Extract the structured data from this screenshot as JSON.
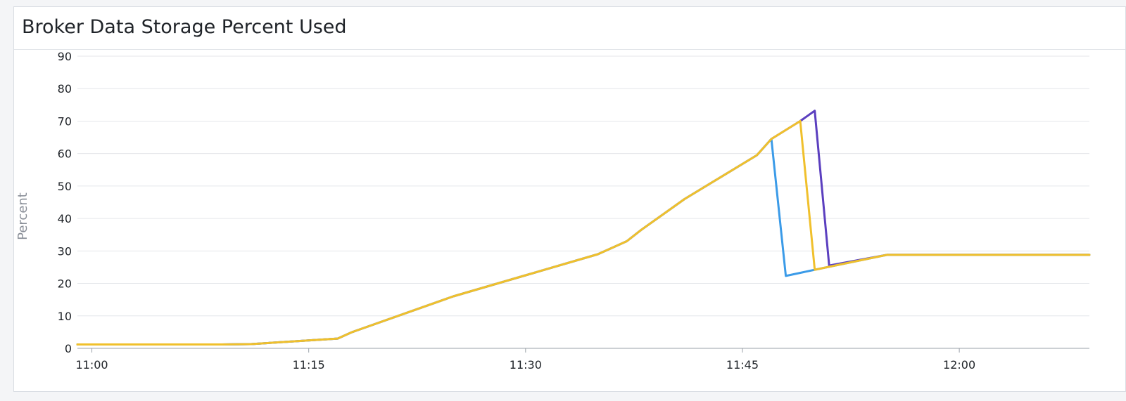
{
  "panel": {
    "title": "Broker Data Storage Percent Used"
  },
  "chart_data": {
    "type": "line",
    "title": "Broker Data Storage Percent Used",
    "xlabel": "",
    "ylabel": "Percent",
    "ylim": [
      0,
      90
    ],
    "yticks": [
      0,
      10,
      20,
      30,
      40,
      50,
      60,
      70,
      80,
      90
    ],
    "xlim": [
      "10:59",
      "12:09"
    ],
    "xticks": [
      "11:00",
      "11:15",
      "11:30",
      "11:45",
      "12:00"
    ],
    "grid": "horizontal",
    "legend": "none",
    "series": [
      {
        "color": "#5b3fbf",
        "x": [
          "10:59",
          "11:04",
          "11:09",
          "11:11",
          "11:17",
          "11:18",
          "11:25",
          "11:30",
          "11:35",
          "11:36",
          "11:37",
          "11:38",
          "11:41",
          "11:46",
          "11:47",
          "11:49",
          "11:50",
          "11:51",
          "11:55",
          "12:00",
          "12:09"
        ],
        "values": [
          1.2,
          1.2,
          1.2,
          1.3,
          3.0,
          5.0,
          16,
          22.5,
          29,
          31,
          33,
          36.5,
          46,
          59.5,
          64.5,
          70,
          73.2,
          25.5,
          28.8,
          28.8,
          28.8
        ]
      },
      {
        "color": "#3b9be8",
        "x": [
          "10:59",
          "11:04",
          "11:09",
          "11:11",
          "11:17",
          "11:18",
          "11:25",
          "11:30",
          "11:35",
          "11:36",
          "11:37",
          "11:38",
          "11:41",
          "11:46",
          "11:47",
          "11:48",
          "11:50",
          "11:55",
          "12:00",
          "12:09"
        ],
        "values": [
          1.2,
          1.2,
          1.2,
          1.3,
          3.0,
          5.0,
          16,
          22.5,
          29,
          31,
          33,
          36.5,
          46,
          59.5,
          64.5,
          22.3,
          24.2,
          28.8,
          28.8,
          28.8
        ]
      },
      {
        "color": "#f0c02c",
        "x": [
          "10:59",
          "11:04",
          "11:09",
          "11:11",
          "11:17",
          "11:18",
          "11:25",
          "11:30",
          "11:35",
          "11:36",
          "11:37",
          "11:38",
          "11:41",
          "11:46",
          "11:47",
          "11:49",
          "11:50",
          "11:55",
          "12:00",
          "12:09"
        ],
        "values": [
          1.2,
          1.2,
          1.2,
          1.3,
          3.0,
          5.0,
          16,
          22.5,
          29,
          31,
          33,
          36.5,
          46,
          59.5,
          64.5,
          70,
          24.2,
          28.8,
          28.8,
          28.8
        ]
      }
    ]
  }
}
